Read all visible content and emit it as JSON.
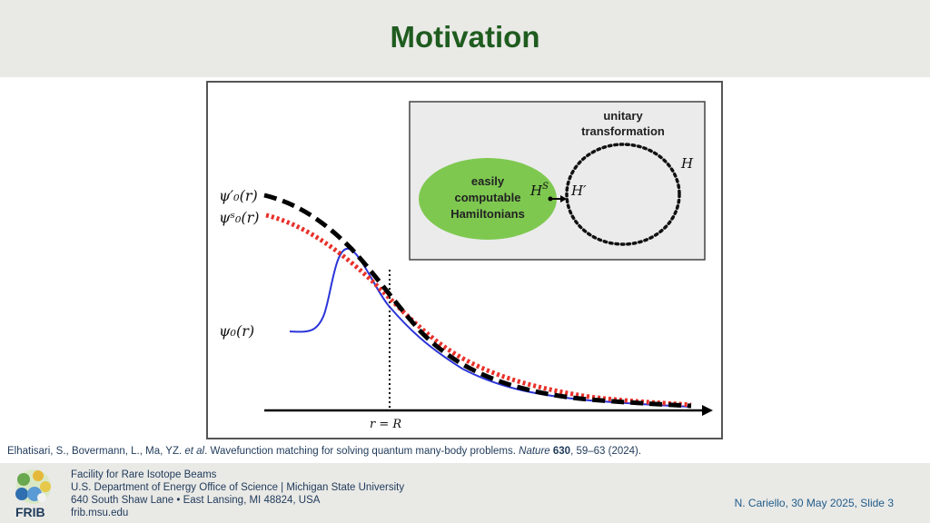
{
  "slide": {
    "title": "Motivation"
  },
  "figure": {
    "inset": {
      "transform_label_line1": "unitary",
      "transform_label_line2": "transformation",
      "ellipse_label_line1": "easily",
      "ellipse_label_line2": "computable",
      "ellipse_label_line3": "Hamiltonians",
      "label_HS": "H",
      "label_HS_sup": "S",
      "label_Hprime": "H′",
      "label_H": "H"
    },
    "curve_labels": {
      "psi_prime": "ψ′₀(r)",
      "psi_S": "ψˢ₀(r)",
      "psi": "ψ₀(r)"
    },
    "axis_label": "r = R",
    "colors": {
      "psi": "#2b35d8",
      "psi_S": "#e8302a",
      "psi_prime": "#000000",
      "ellipse": "#7ec850"
    }
  },
  "citation": {
    "authors": "Elhatisari, S., Bovermann, L., Ma, YZ. ",
    "etal": "et al",
    "text": ". Wavefunction matching for solving quantum many-body problems. ",
    "journal": "Nature",
    "volume": "630",
    "pages": ", 59–63 (2024)."
  },
  "footer": {
    "logo_text": "FRIB",
    "line1": "Facility for Rare Isotope Beams",
    "line2": "U.S. Department of Energy Office of Science | Michigan State University",
    "line3": "640 South Shaw Lane • East Lansing, MI 48824, USA",
    "line4": "frib.msu.edu",
    "slide_info": "N. Cariello, 30 May 2025, Slide 3"
  }
}
